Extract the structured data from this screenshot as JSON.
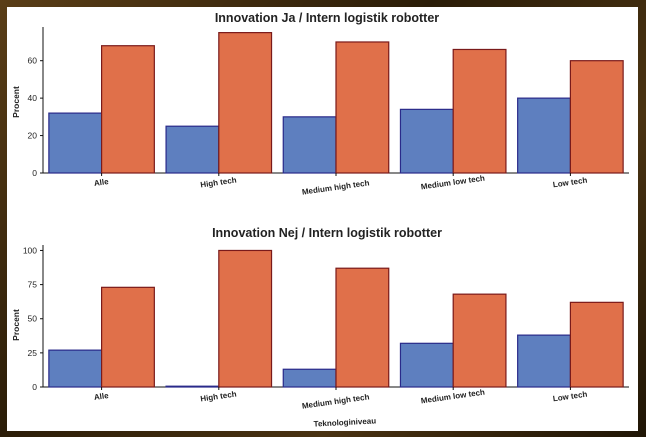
{
  "chart_data": [
    {
      "type": "bar",
      "title": "Innovation Ja / Intern logistik robotter",
      "xlabel": "",
      "ylabel": "Procent",
      "categories": [
        "Alle",
        "High tech",
        "Medium high tech",
        "Medium low tech",
        "Low tech"
      ],
      "series": [
        {
          "values": [
            32,
            25,
            30,
            34,
            40
          ]
        },
        {
          "values": [
            68,
            75,
            70,
            66,
            60
          ]
        }
      ],
      "yticks": [
        0,
        20,
        40,
        60
      ],
      "ylim": [
        0,
        78
      ],
      "legend": "none",
      "grid": false
    },
    {
      "type": "bar",
      "title": "Innovation Nej / Intern logistik robotter",
      "xlabel": "Teknologiniveau",
      "ylabel": "Procent",
      "categories": [
        "Alle",
        "High tech",
        "Medium high tech",
        "Medium low tech",
        "Low tech"
      ],
      "series": [
        {
          "values": [
            27,
            0,
            13,
            32,
            38
          ]
        },
        {
          "values": [
            73,
            100,
            87,
            68,
            62
          ]
        }
      ],
      "yticks": [
        0,
        25,
        50,
        75,
        100
      ],
      "ylim": [
        0,
        104
      ],
      "legend": "none",
      "grid": false
    }
  ],
  "colors": {
    "series_fill": [
      "#5e7fbf",
      "#e0704a"
    ],
    "series_stroke": [
      "#2a2a8a",
      "#7a1a1a"
    ]
  }
}
